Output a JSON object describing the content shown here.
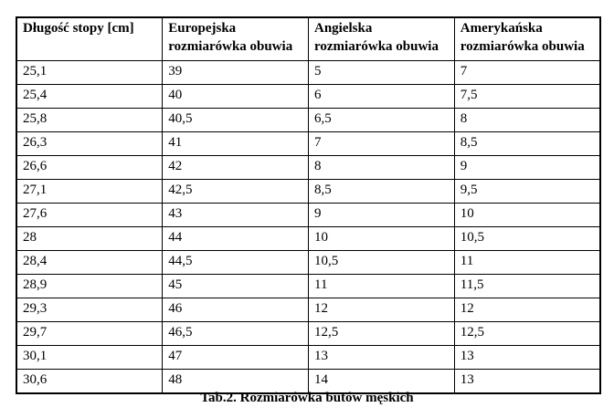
{
  "table": {
    "headers": [
      "Długość stopy [cm]",
      "Europejska rozmiarówka obuwia",
      "Angielska rozmiarówka obuwia",
      "Amerykańska rozmiarówka obuwia"
    ],
    "rows": [
      [
        "25,1",
        "39",
        "5",
        "7"
      ],
      [
        "25,4",
        "40",
        "6",
        "7,5"
      ],
      [
        "25,8",
        "40,5",
        "6,5",
        "8"
      ],
      [
        "26,3",
        "41",
        "7",
        "8,5"
      ],
      [
        "26,6",
        "42",
        "8",
        "9"
      ],
      [
        "27,1",
        "42,5",
        "8,5",
        "9,5"
      ],
      [
        "27,6",
        "43",
        "9",
        "10"
      ],
      [
        "28",
        "44",
        "10",
        "10,5"
      ],
      [
        "28,4",
        "44,5",
        "10,5",
        "11"
      ],
      [
        "28,9",
        "45",
        "11",
        "11,5"
      ],
      [
        "29,3",
        "46",
        "12",
        "12"
      ],
      [
        "29,7",
        "46,5",
        "12,5",
        "12,5"
      ],
      [
        "30,1",
        "47",
        "13",
        "13"
      ],
      [
        "30,6",
        "48",
        "14",
        "13"
      ]
    ]
  },
  "caption": "Tab.2. Rozmiarówka butów męskich",
  "colors": {
    "border": "#000000",
    "text": "#000000",
    "background": "#ffffff"
  }
}
